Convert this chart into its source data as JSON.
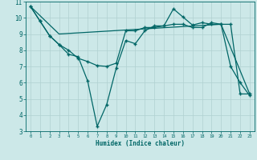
{
  "xlabel": "Humidex (Indice chaleur)",
  "xlim": [
    -0.5,
    23.5
  ],
  "ylim": [
    3,
    11
  ],
  "yticks": [
    3,
    4,
    5,
    6,
    7,
    8,
    9,
    10,
    11
  ],
  "xticks": [
    0,
    1,
    2,
    3,
    4,
    5,
    6,
    7,
    8,
    9,
    10,
    11,
    12,
    13,
    14,
    15,
    16,
    17,
    18,
    19,
    20,
    21,
    22,
    23
  ],
  "bg_color": "#cce8e8",
  "grid_color": "#b0d0d0",
  "line_color": "#006666",
  "series1_x": [
    0,
    1,
    2,
    3,
    4,
    5,
    6,
    7,
    8,
    9,
    10,
    11,
    12,
    13,
    14,
    15,
    16,
    17,
    18,
    19,
    20,
    21,
    22,
    23
  ],
  "series1_y": [
    10.7,
    9.8,
    8.9,
    8.35,
    7.75,
    7.6,
    6.1,
    3.3,
    4.65,
    6.9,
    8.6,
    8.4,
    9.2,
    9.5,
    9.5,
    10.55,
    10.05,
    9.55,
    9.7,
    9.6,
    9.6,
    7.0,
    6.0,
    5.2
  ],
  "series2_x": [
    0,
    1,
    2,
    3,
    4,
    5,
    6,
    7,
    8,
    9,
    10,
    11,
    12,
    13,
    14,
    15,
    16,
    17,
    18,
    19,
    20,
    21,
    22,
    23
  ],
  "series2_y": [
    10.7,
    9.8,
    8.9,
    8.35,
    8.0,
    7.5,
    7.3,
    7.05,
    7.0,
    7.2,
    9.2,
    9.2,
    9.4,
    9.4,
    9.5,
    9.6,
    9.6,
    9.4,
    9.4,
    9.7,
    9.6,
    9.6,
    5.3,
    5.3
  ],
  "series3_x": [
    0,
    3,
    20,
    23
  ],
  "series3_y": [
    10.7,
    9.0,
    9.6,
    5.3
  ],
  "marker_style": "+",
  "linewidth": 0.9,
  "markersize": 3
}
